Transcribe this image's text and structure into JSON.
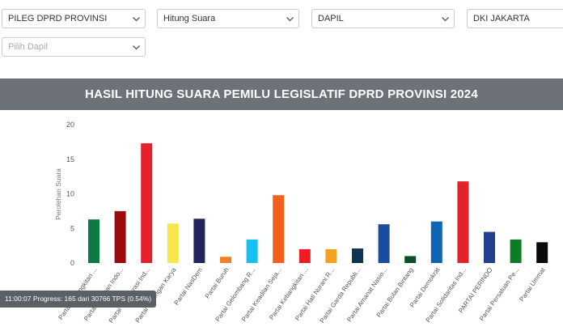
{
  "filters": {
    "election_type": "PILEG DPRD PROVINSI",
    "data_type": "Hitung Suara",
    "region_level": "DAPIL",
    "province": "DKI JAKARTA",
    "dapil_placeholder": "Pilih Dapil"
  },
  "icons": {
    "dropdown": "chevron-down-icon"
  },
  "colors": {
    "title_bar": "#6d7278",
    "status_bar": "#5b5f66"
  },
  "header": {
    "title": "HASIL HITUNG SUARA PEMILU LEGISLATIF DPRD PROVINSI 2024"
  },
  "status": {
    "text": "11:00:07 Progress: 165 dari 30766 TPS (0.54%)"
  },
  "chart_data": {
    "type": "bar",
    "title": "HASIL HITUNG SUARA PEMILU LEGISLATIF DPRD PROVINSI 2024",
    "xlabel": "",
    "ylabel": "Perolehan Suara",
    "ylim": [
      0,
      20
    ],
    "yticks": [
      0,
      5,
      10,
      15,
      20
    ],
    "grid": false,
    "categories": [
      "Partai Kebangkitan ...",
      "Partai Gerakan Indo...",
      "Partai Demokrasi Ind...",
      "Partai Golongan Karya",
      "Partai NasDem",
      "Partai Buruh",
      "Partai Gelombang R...",
      "Partai Keadilan Seja...",
      "Partai Kebangkitan ...",
      "Partai Hati Nurani R...",
      "Partai Garda Republi...",
      "Partai Amanat Nasio...",
      "Partai Bulan Bintang",
      "Partai Demokrat",
      "Partai Solidaritas Ind...",
      "PARTAI PERINDO",
      "Partai Persatuan Pe...",
      "Partai Ummat"
    ],
    "values": [
      6.3,
      7.5,
      17.3,
      5.7,
      6.4,
      0.9,
      3.4,
      9.8,
      2.0,
      2.0,
      2.1,
      5.6,
      1.0,
      6.0,
      11.8,
      4.5,
      3.4,
      3.0
    ],
    "colors": [
      "#0b7a45",
      "#9b0b0e",
      "#e5202b",
      "#f7e64b",
      "#23245c",
      "#f57e20",
      "#17c0f2",
      "#f2601c",
      "#ee1d24",
      "#f4a11d",
      "#0d3355",
      "#1b4d9f",
      "#0a4f2a",
      "#1164b4",
      "#e2232a",
      "#23408e",
      "#0c7c26",
      "#0a0a0a"
    ]
  }
}
